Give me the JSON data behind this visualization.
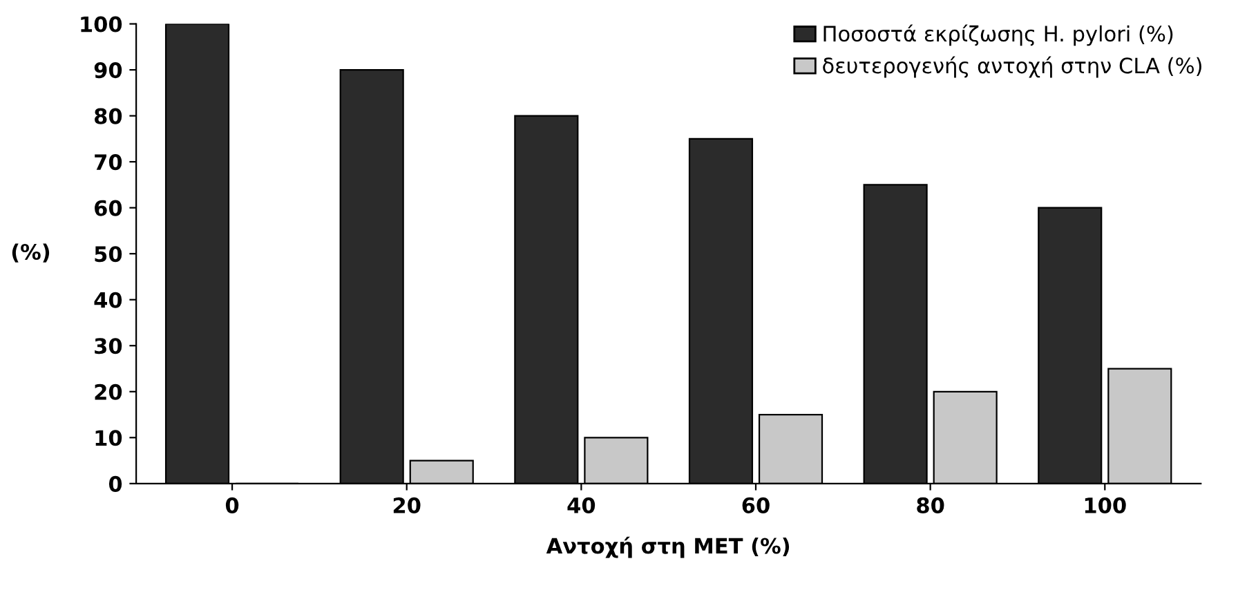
{
  "chart_data": {
    "type": "bar",
    "xlabel": "Αντοχή στη ΜΕΤ (%)",
    "ylabel": "(%)",
    "categories": [
      "0",
      "20",
      "40",
      "60",
      "80",
      "100"
    ],
    "series": [
      {
        "name": "Ποσοστά εκρίζωσης H. pylori (%)",
        "color": "#2b2b2b",
        "values": [
          100,
          90,
          80,
          75,
          65,
          60
        ]
      },
      {
        "name": "δευτερογενής αντοχή στην CLA (%)",
        "color": "#c8c8c8",
        "values": [
          0,
          5,
          10,
          15,
          20,
          25
        ]
      }
    ],
    "ylim": [
      0,
      100
    ],
    "yticks": [
      0,
      10,
      20,
      30,
      40,
      50,
      60,
      70,
      80,
      90,
      100
    ],
    "grid": false,
    "legend": "top right"
  }
}
